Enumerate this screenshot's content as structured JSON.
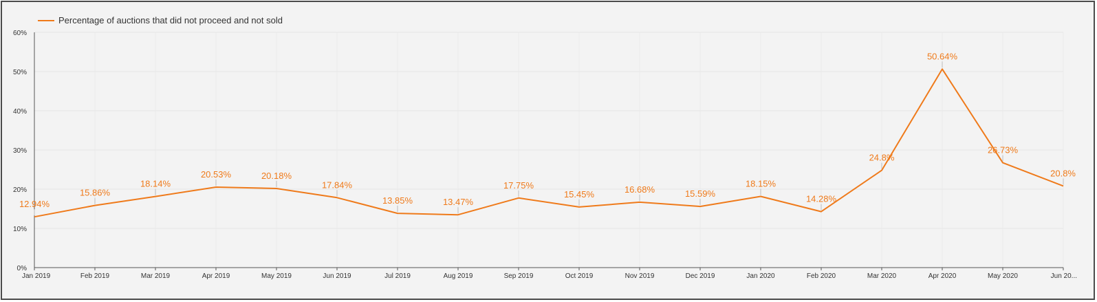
{
  "chart_data": {
    "type": "line",
    "title": "",
    "xlabel": "",
    "ylabel": "",
    "ylim": [
      0,
      60
    ],
    "y_ticks": [
      "0%",
      "10%",
      "20%",
      "30%",
      "40%",
      "50%",
      "60%"
    ],
    "grid": true,
    "legend_position": "top-left",
    "categories": [
      "Jan 2019",
      "Feb 2019",
      "Mar 2019",
      "Apr 2019",
      "May 2019",
      "Jun 2019",
      "Jul 2019",
      "Aug 2019",
      "Sep 2019",
      "Oct 2019",
      "Nov 2019",
      "Dec 2019",
      "Jan 2020",
      "Feb 2020",
      "Mar 2020",
      "Apr 2020",
      "May 2020",
      "Jun 20..."
    ],
    "series": [
      {
        "name": "Percentage of auctions that did not proceed and not sold",
        "color": "#ef7a1a",
        "values": [
          12.94,
          15.86,
          18.14,
          20.53,
          20.18,
          17.84,
          13.85,
          13.47,
          17.75,
          15.45,
          16.68,
          15.59,
          18.15,
          14.28,
          24.8,
          50.64,
          26.73,
          20.8
        ],
        "labels": [
          "12.94%",
          "15.86%",
          "18.14%",
          "20.53%",
          "20.18%",
          "17.84%",
          "13.85%",
          "13.47%",
          "17.75%",
          "15.45%",
          "16.68%",
          "15.59%",
          "18.15%",
          "14.28%",
          "24.8%",
          "50.64%",
          "26.73%",
          "20.8%"
        ]
      }
    ]
  }
}
